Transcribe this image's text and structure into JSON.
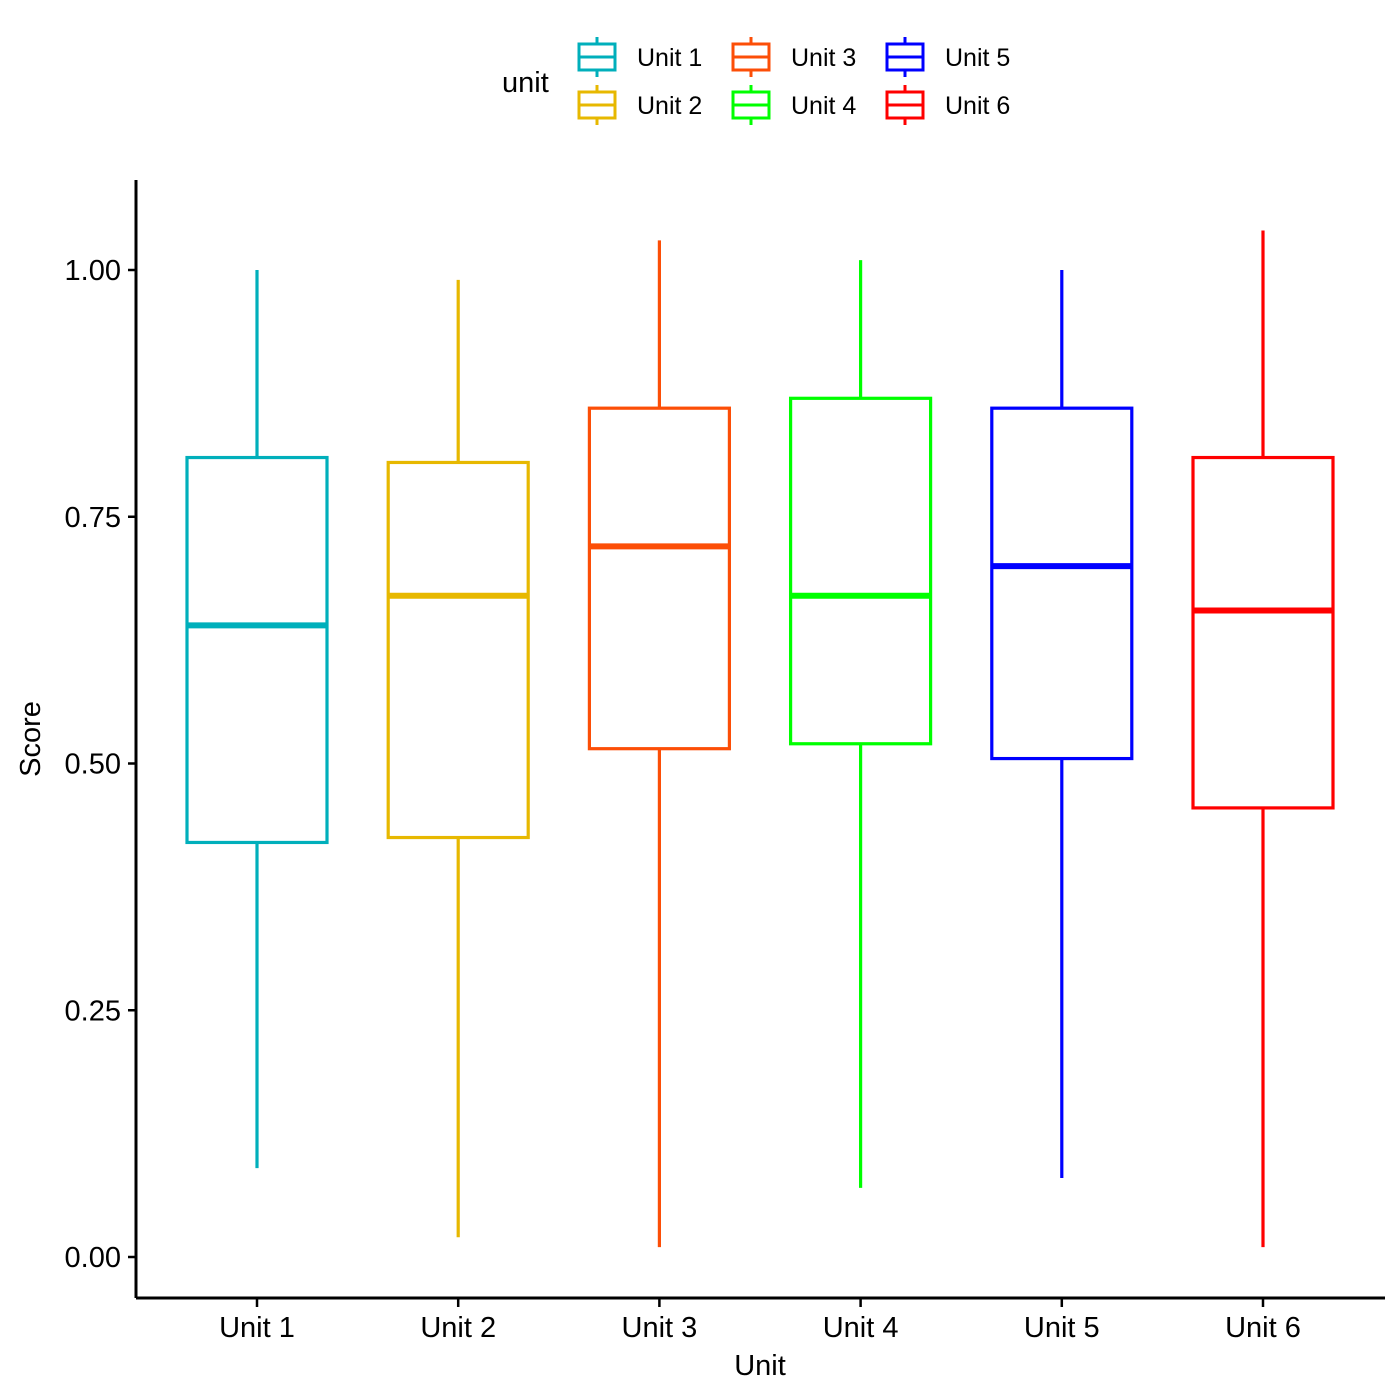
{
  "chart_data": {
    "type": "boxplot",
    "title": "",
    "xlabel": "Unit",
    "ylabel": "Score",
    "ylim": [
      -0.035,
      1.095
    ],
    "y_ticks": [
      0.0,
      0.25,
      0.5,
      0.75,
      1.0
    ],
    "y_tick_labels": [
      "0.00",
      "0.25",
      "0.50",
      "0.75",
      "1.00"
    ],
    "grid": false,
    "legend": {
      "title": "unit",
      "position": "top",
      "entries": [
        "Unit 1",
        "Unit 2",
        "Unit 3",
        "Unit 4",
        "Unit 5",
        "Unit 6"
      ]
    },
    "categories": [
      "Unit 1",
      "Unit 2",
      "Unit 3",
      "Unit 4",
      "Unit 5",
      "Unit 6"
    ],
    "series": [
      {
        "name": "Unit 1",
        "color": "#00AFBB",
        "min": 0.09,
        "q1": 0.42,
        "median": 0.64,
        "q3": 0.81,
        "max": 1.0
      },
      {
        "name": "Unit 2",
        "color": "#E7B800",
        "min": 0.02,
        "q1": 0.425,
        "median": 0.67,
        "q3": 0.805,
        "max": 0.99
      },
      {
        "name": "Unit 3",
        "color": "#FC4E07",
        "min": 0.01,
        "q1": 0.515,
        "median": 0.72,
        "q3": 0.86,
        "max": 1.03
      },
      {
        "name": "Unit 4",
        "color": "#00FF00",
        "min": 0.07,
        "q1": 0.52,
        "median": 0.67,
        "q3": 0.87,
        "max": 1.01
      },
      {
        "name": "Unit 5",
        "color": "#0000FF",
        "min": 0.08,
        "q1": 0.505,
        "median": 0.7,
        "q3": 0.86,
        "max": 1.0
      },
      {
        "name": "Unit 6",
        "color": "#FF0000",
        "min": 0.01,
        "q1": 0.455,
        "median": 0.655,
        "q3": 0.81,
        "max": 1.04
      }
    ]
  }
}
